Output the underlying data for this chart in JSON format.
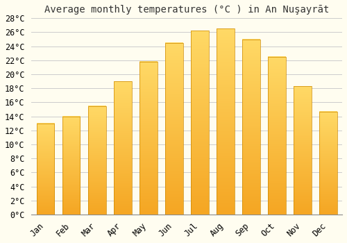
{
  "title": "Average monthly temperatures (°C ) in An Nuşayrāt",
  "months": [
    "Jan",
    "Feb",
    "Mar",
    "Apr",
    "May",
    "Jun",
    "Jul",
    "Aug",
    "Sep",
    "Oct",
    "Nov",
    "Dec"
  ],
  "values": [
    13,
    14,
    15.5,
    19,
    21.8,
    24.5,
    26.2,
    26.5,
    25,
    22.5,
    18.3,
    14.7
  ],
  "bar_color": "#FFA500",
  "bar_edge_color": "#CC8800",
  "background_color": "#FFFDF0",
  "plot_bg_color": "#FFFDF0",
  "grid_color": "#cccccc",
  "ylim": [
    0,
    28
  ],
  "yticks": [
    0,
    2,
    4,
    6,
    8,
    10,
    12,
    14,
    16,
    18,
    20,
    22,
    24,
    26,
    28
  ],
  "title_fontsize": 10,
  "tick_fontsize": 8.5,
  "bar_width": 0.7
}
